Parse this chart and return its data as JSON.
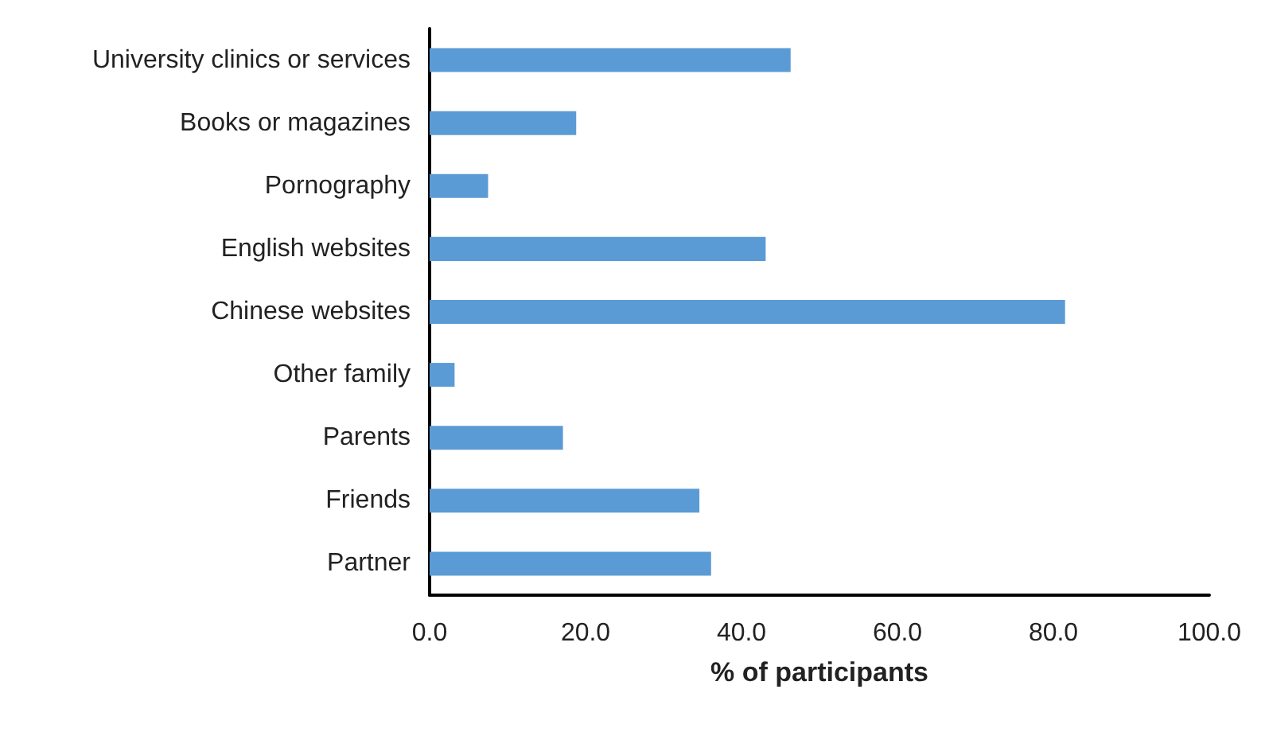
{
  "chart_data": {
    "type": "bar",
    "orientation": "horizontal",
    "xlabel": "% of participants",
    "categories": [
      "University clinics or services",
      "Books or magazines",
      "Pornography",
      "English websites",
      "Chinese websites",
      "Other family",
      "Parents",
      "Friends",
      "Partner"
    ],
    "values": [
      46.3,
      18.8,
      7.5,
      43.1,
      81.5,
      3.2,
      17.1,
      34.6,
      36.1
    ],
    "color": "#5b9bd5",
    "xlim": [
      0,
      100
    ],
    "xticks": [
      {
        "value": 0,
        "label": "0.0"
      },
      {
        "value": 20,
        "label": "20.0"
      },
      {
        "value": 40,
        "label": "40.0"
      },
      {
        "value": 60,
        "label": "60.0"
      },
      {
        "value": 80,
        "label": "80.0"
      },
      {
        "value": 100,
        "label": "100.0"
      }
    ],
    "grid": false
  }
}
